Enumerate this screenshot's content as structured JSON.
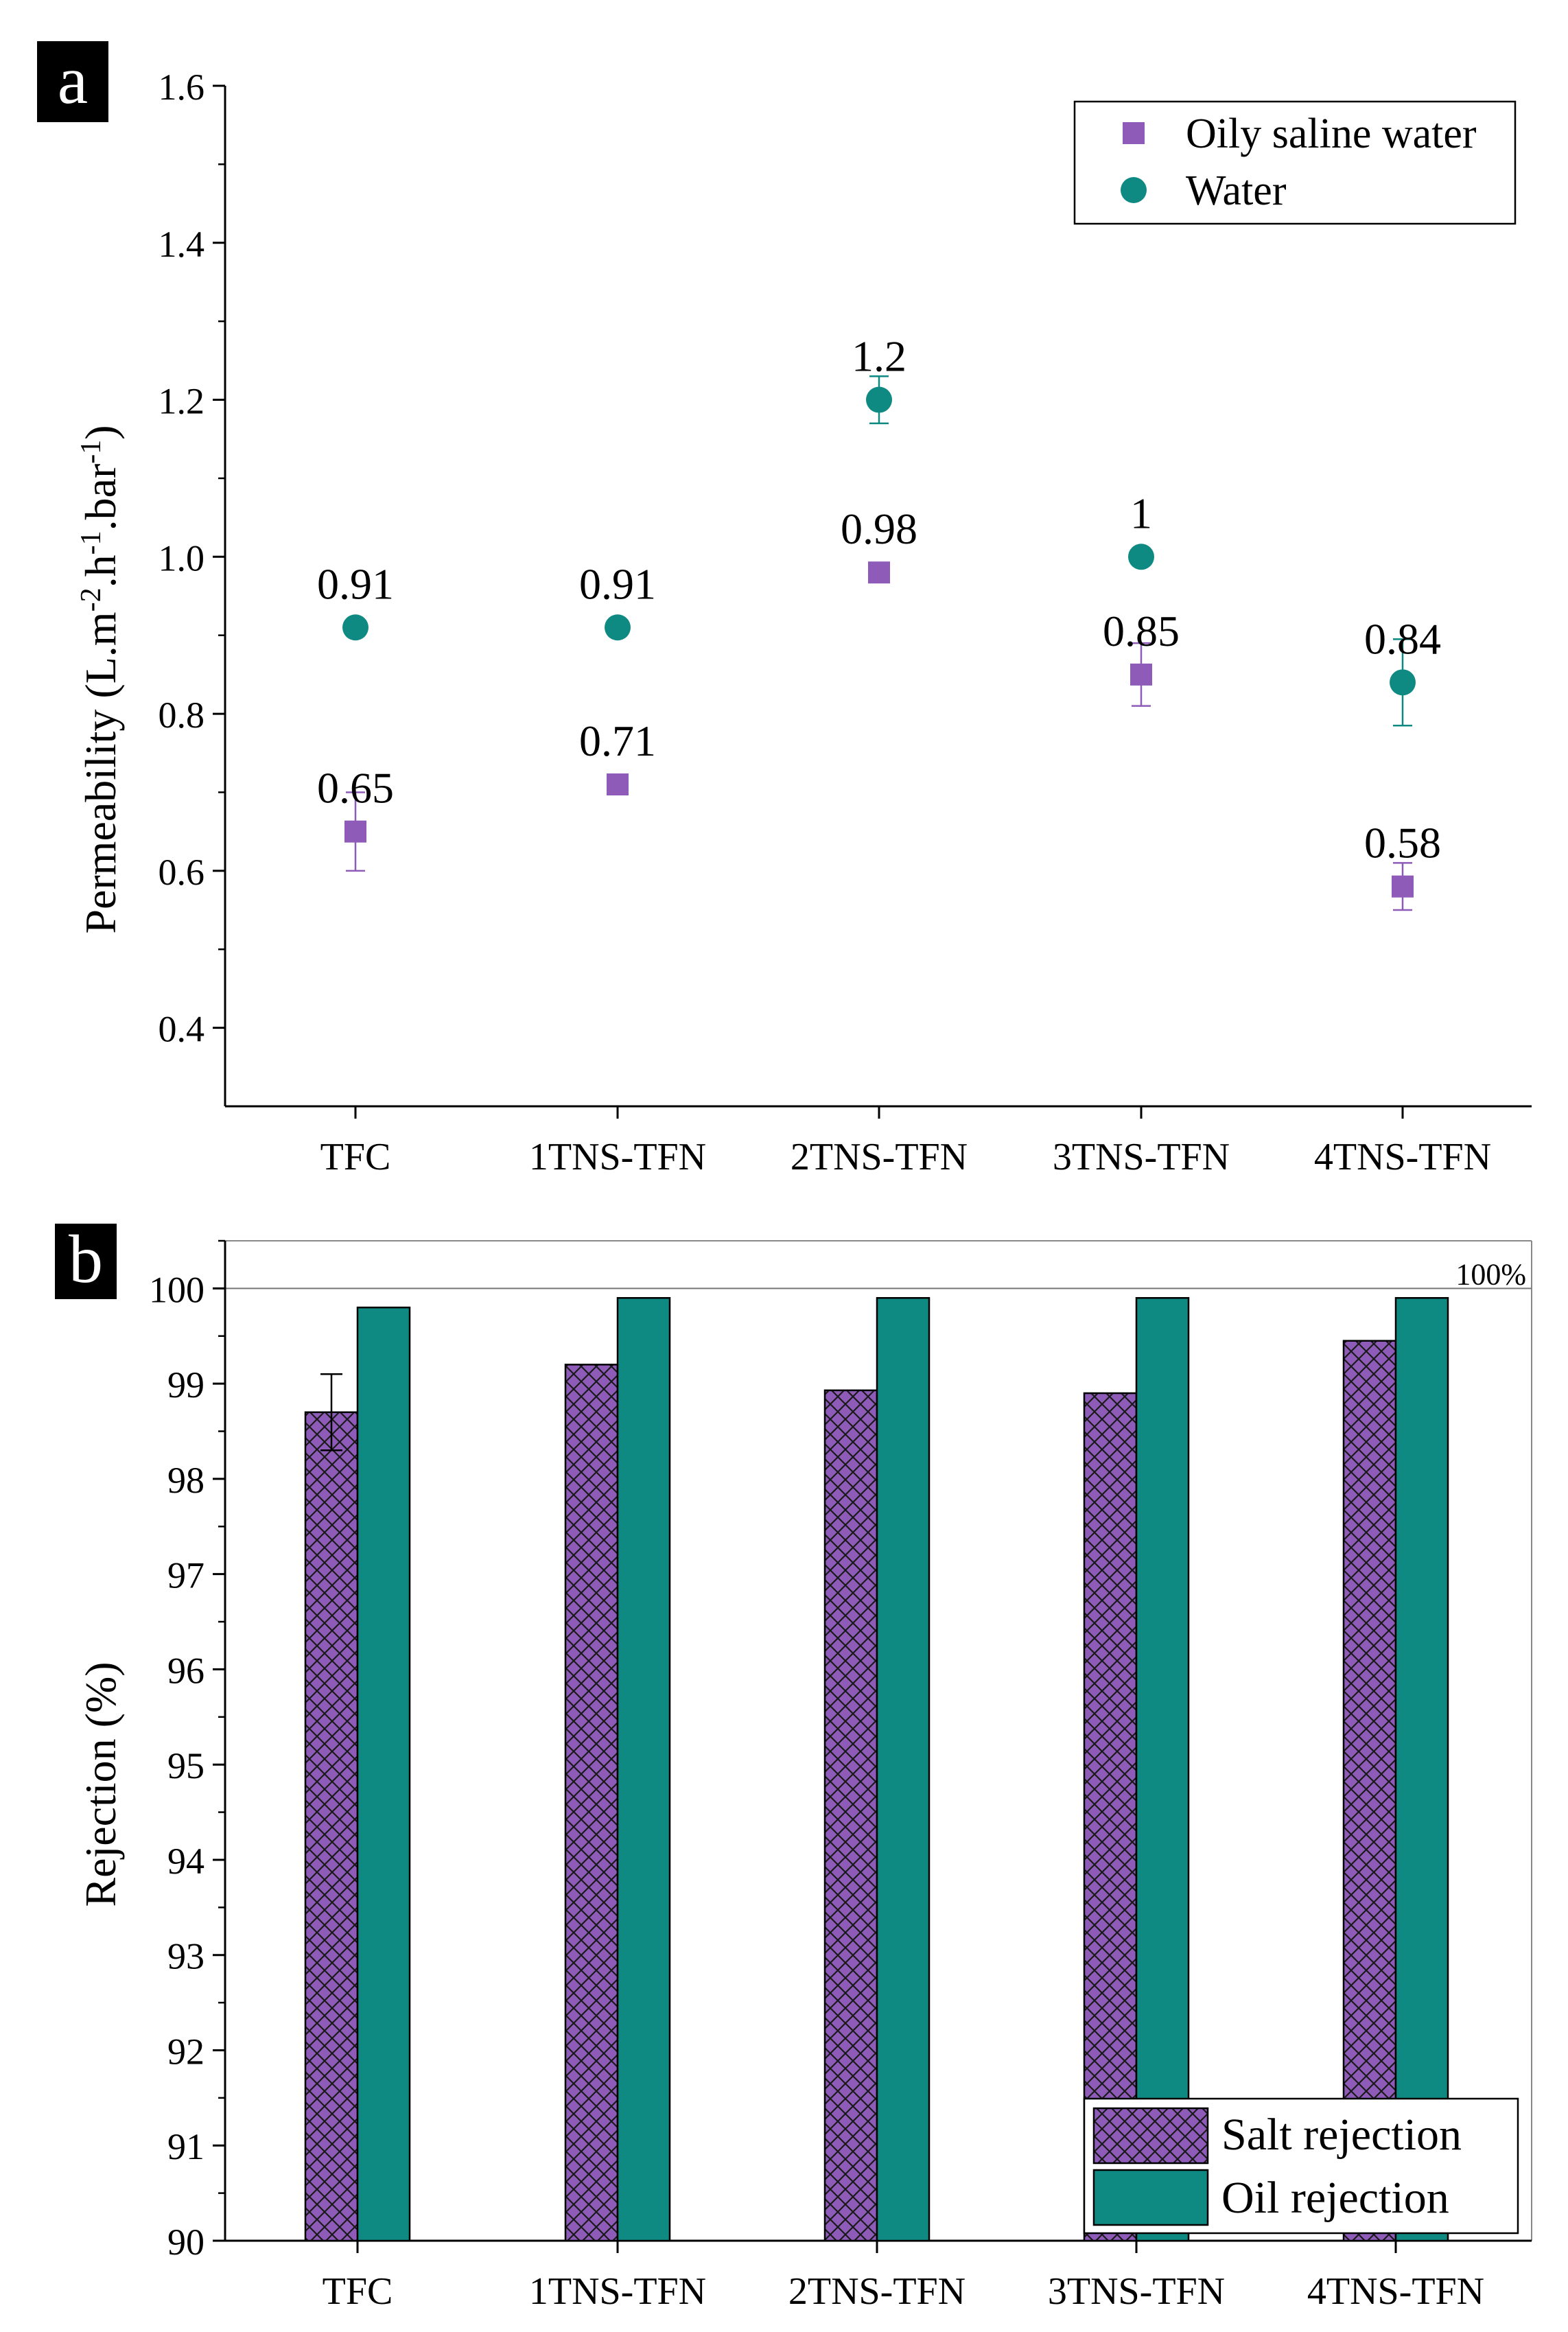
{
  "chart_data": [
    {
      "panel": "a",
      "type": "scatter",
      "ylabel": "Permeability (L.m^-2.h^-1.bar^-1)",
      "ylabel_parts": {
        "p1": "Permeability (L.m",
        "s1": "-2",
        "p2": ".h",
        "s2": "-1",
        "p3": ".bar",
        "s3": "-1",
        "p4": ")"
      },
      "xlabel": "",
      "ylim": [
        0.3,
        1.6
      ],
      "yticks": [
        0.4,
        0.6,
        0.8,
        1.0,
        1.2,
        1.4,
        1.6
      ],
      "ytick_labels": [
        "0.4",
        "0.6",
        "0.8",
        "1.0",
        "1.2",
        "1.4",
        "1.6"
      ],
      "categories": [
        "TFC",
        "1TNS-TFN",
        "2TNS-TFN",
        "3TNS-TFN",
        "4TNS-TFN"
      ],
      "legend_position": "top-right",
      "series": [
        {
          "name": "Oily saline water",
          "marker": "square",
          "color": "#8e5bb8",
          "values": [
            0.65,
            0.71,
            0.98,
            0.85,
            0.58
          ],
          "errors": [
            0.05,
            0.0,
            0.0,
            0.04,
            0.03
          ],
          "labels": [
            "0.65",
            "0.71",
            "0.98",
            "0.85",
            "0.58"
          ]
        },
        {
          "name": "Water",
          "marker": "circle",
          "color": "#0f8a82",
          "values": [
            0.91,
            0.91,
            1.2,
            1.0,
            0.84
          ],
          "errors": [
            0.0,
            0.0,
            0.03,
            0.01,
            0.055
          ],
          "labels": [
            "0.91",
            "0.91",
            "1.2",
            "1",
            "0.84"
          ]
        }
      ]
    },
    {
      "panel": "b",
      "type": "bar",
      "ylabel": "Rejection (%)",
      "xlabel": "",
      "ylim": [
        90,
        100.5
      ],
      "yticks": [
        90,
        91,
        92,
        93,
        94,
        95,
        96,
        97,
        98,
        99,
        100
      ],
      "ytick_labels": [
        "90",
        "91",
        "92",
        "93",
        "94",
        "95",
        "96",
        "97",
        "98",
        "99",
        "100"
      ],
      "categories": [
        "TFC",
        "1TNS-TFN",
        "2TNS-TFN",
        "3TNS-TFN",
        "4TNS-TFN"
      ],
      "reference_line": {
        "value": 100,
        "label": "100%"
      },
      "legend_position": "bottom-right",
      "series": [
        {
          "name": "Salt rejection",
          "color": "#8e5bb8",
          "pattern": "crosshatch",
          "values": [
            98.7,
            99.2,
            98.93,
            98.9,
            99.45
          ],
          "errors": [
            0.4,
            0,
            0,
            0,
            0
          ]
        },
        {
          "name": "Oil rejection",
          "color": "#0f8a82",
          "values": [
            99.8,
            99.9,
            99.9,
            99.9,
            99.9
          ],
          "errors": [
            0,
            0,
            0,
            0,
            0
          ]
        }
      ]
    }
  ]
}
